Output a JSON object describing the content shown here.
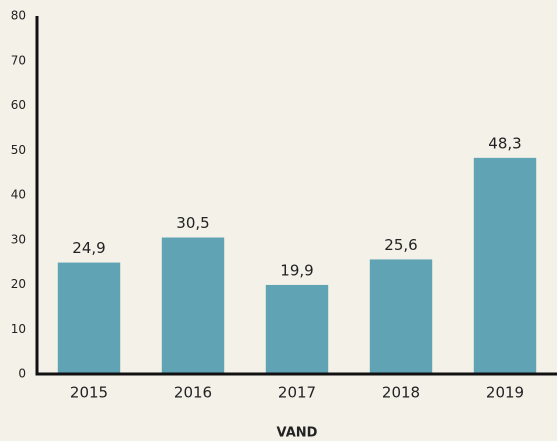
{
  "chart_data": {
    "type": "bar",
    "categories": [
      "2015",
      "2016",
      "2017",
      "2018",
      "2019"
    ],
    "values": [
      24.9,
      30.5,
      19.9,
      25.6,
      48.3
    ],
    "value_labels": [
      "24,9",
      "30,5",
      "19,9",
      "25,6",
      "48,3"
    ],
    "color": "#5fa3b5",
    "x_label": "VAND",
    "ylim": [
      0,
      80
    ],
    "yticks": [
      0,
      10,
      20,
      30,
      40,
      50,
      60,
      70,
      80
    ],
    "grid": false
  }
}
